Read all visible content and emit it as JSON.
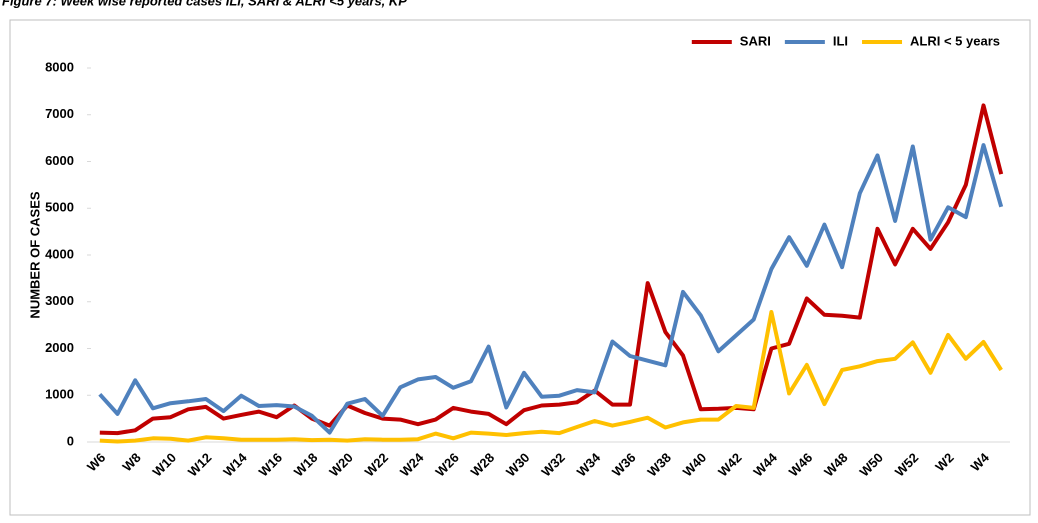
{
  "chart_data": {
    "type": "line",
    "title": "Figure 7: Week wise reported cases ILI, SARI & ALRI <5 years, KP",
    "y_label": "NUMBER OF CASES",
    "categories": [
      "W6",
      null,
      "W8",
      null,
      "W10",
      null,
      "W12",
      null,
      "W14",
      null,
      "W16",
      null,
      "W18",
      null,
      "W20",
      null,
      "W22",
      null,
      "W24",
      null,
      "W26",
      null,
      "W28",
      null,
      "W30",
      null,
      "W32",
      null,
      "W34",
      null,
      "W36",
      null,
      "W38",
      null,
      "W40",
      null,
      "W42",
      null,
      "W44",
      null,
      "W46",
      null,
      "W48",
      null,
      "W50",
      null,
      "W52",
      null,
      "W2",
      null,
      "W4",
      null
    ],
    "series": [
      {
        "name": "SARI",
        "color": "#c00000",
        "values": [
          200,
          190,
          250,
          500,
          530,
          700,
          750,
          500,
          580,
          650,
          530,
          780,
          500,
          350,
          780,
          620,
          500,
          480,
          380,
          480,
          730,
          650,
          600,
          380,
          680,
          780,
          800,
          850,
          1100,
          800,
          800,
          3400,
          2350,
          1850,
          700,
          710,
          730,
          700,
          2000,
          2100,
          3070,
          2720,
          2700,
          2660,
          4560,
          3800,
          4560,
          4130,
          4700,
          5500,
          7200,
          5730
        ]
      },
      {
        "name": "ILI",
        "color": "#4f81bd",
        "values": [
          1020,
          600,
          1320,
          720,
          830,
          870,
          920,
          660,
          990,
          770,
          790,
          760,
          560,
          200,
          820,
          920,
          560,
          1170,
          1340,
          1390,
          1160,
          1300,
          2040,
          740,
          1480,
          970,
          990,
          1110,
          1060,
          2150,
          1840,
          1740,
          1640,
          3210,
          2710,
          1940,
          2280,
          2620,
          3700,
          4380,
          3770,
          4650,
          3740,
          5320,
          6130,
          4730,
          6320,
          4330,
          5020,
          4810,
          6350,
          5030
        ]
      },
      {
        "name": "ALRI < 5 years",
        "color": "#ffc000",
        "values": [
          30,
          10,
          30,
          80,
          70,
          30,
          100,
          80,
          50,
          50,
          50,
          60,
          40,
          50,
          30,
          60,
          50,
          50,
          60,
          180,
          80,
          200,
          180,
          150,
          190,
          220,
          190,
          320,
          450,
          350,
          430,
          520,
          310,
          420,
          480,
          480,
          770,
          730,
          2780,
          1040,
          1650,
          810,
          1540,
          1620,
          1730,
          1780,
          2130,
          1480,
          2290,
          1780,
          2140,
          1540
        ]
      }
    ],
    "ylim": [
      0,
      8000
    ],
    "yticks": [
      0,
      1000,
      2000,
      3000,
      4000,
      5000,
      6000,
      7000,
      8000
    ],
    "grid": false,
    "legend": "top-right"
  }
}
